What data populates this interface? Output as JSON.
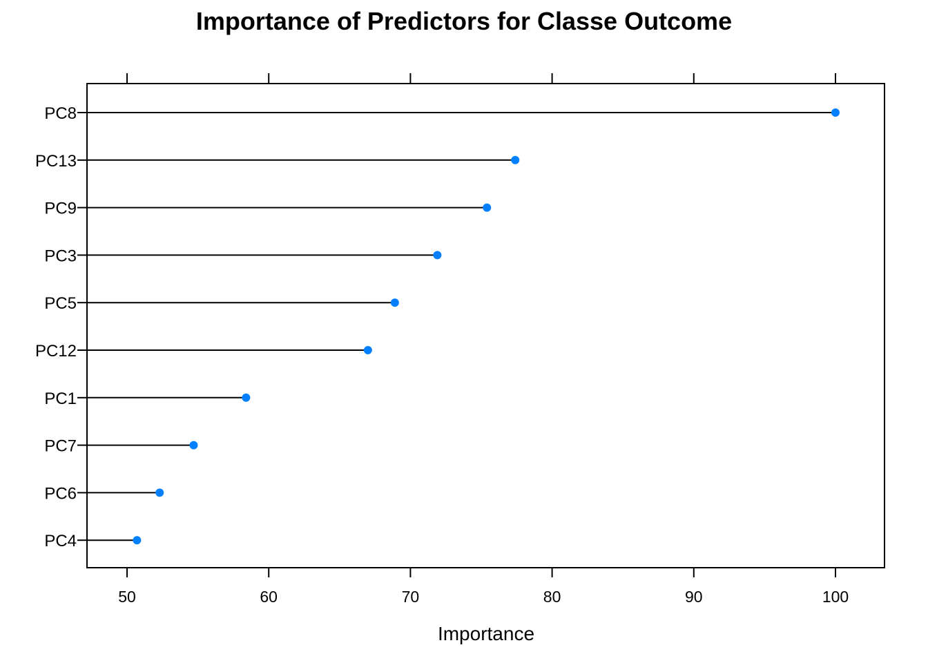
{
  "chart_data": {
    "type": "scatter",
    "style": "lollipop",
    "title": "Importance of Predictors for Classe Outcome",
    "xlabel": "Importance",
    "ylabel": "",
    "xlim": [
      47.2,
      103.4
    ],
    "x_ticks": [
      50,
      60,
      70,
      80,
      90,
      100
    ],
    "grid": false,
    "categories": [
      "PC8",
      "PC13",
      "PC9",
      "PC3",
      "PC5",
      "PC12",
      "PC1",
      "PC7",
      "PC6",
      "PC4"
    ],
    "values": [
      100,
      77.4,
      75.4,
      71.9,
      68.9,
      67.0,
      58.4,
      54.7,
      52.3,
      50.7
    ],
    "colors": {
      "point": "#0080ff",
      "line": "#000000",
      "frame": "#000000"
    }
  }
}
